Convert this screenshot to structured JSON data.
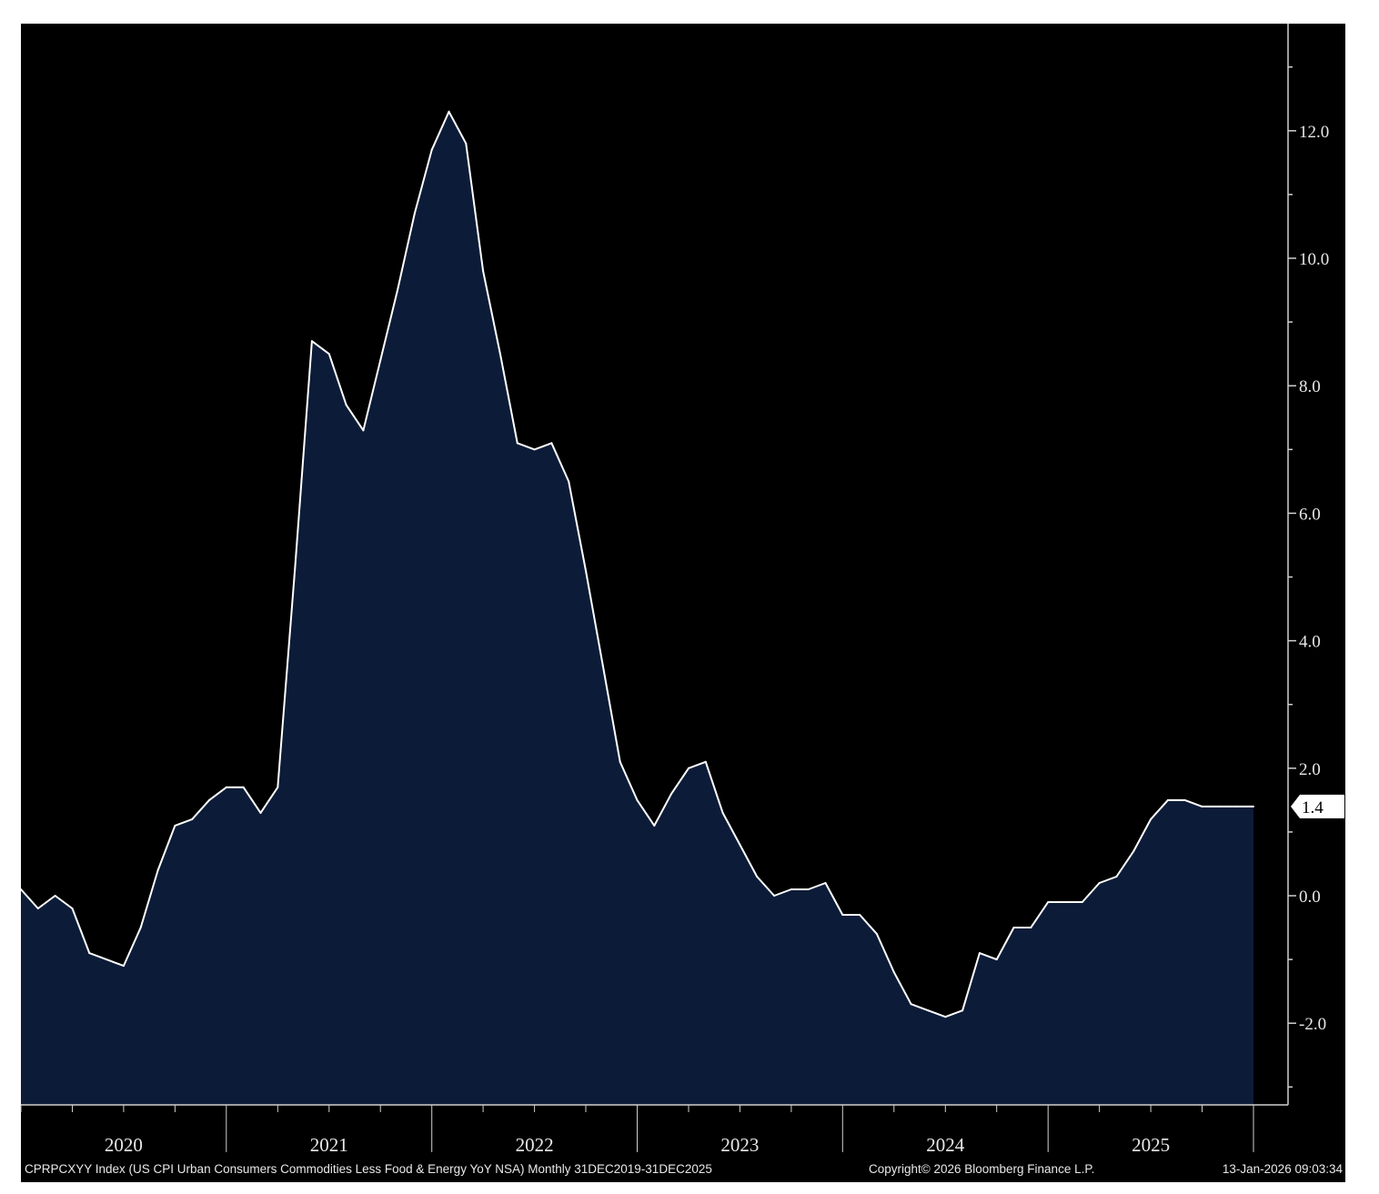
{
  "colors": {
    "background": "#000000",
    "area_fill": "#0c1c38",
    "line": "#ffffff",
    "axis": "#cfcfcf",
    "text": "#e8e8e8"
  },
  "footer": {
    "description": "CPRPCXYY Index (US CPI Urban Consumers Commodities Less Food & Energy YoY NSA) Monthly 31DEC2019-31DEC2025",
    "copyright": "Copyright© 2026 Bloomberg Finance L.P.",
    "timestamp": "13-Jan-2026 09:03:34"
  },
  "last_value_label": "1.4",
  "chart_data": {
    "type": "area",
    "title": "",
    "xlabel": "",
    "ylabel": "",
    "ylim": [
      -3.2,
      13.8
    ],
    "y_ticks": [
      -2,
      0,
      2,
      4,
      6,
      8,
      10,
      12
    ],
    "y_tick_labels": [
      "-2.0",
      "0.0",
      "2.0",
      "4.0",
      "6.0",
      "8.0",
      "10.0",
      "12.0"
    ],
    "x_labels": [
      "2020",
      "2021",
      "2022",
      "2023",
      "2024",
      "2025"
    ],
    "grid": false,
    "legend": "none",
    "series": [
      {
        "x": [
          "2019-12",
          "2020-01",
          "2020-02",
          "2020-03",
          "2020-04",
          "2020-05",
          "2020-06",
          "2020-07",
          "2020-08",
          "2020-09",
          "2020-10",
          "2020-11",
          "2020-12",
          "2021-01",
          "2021-02",
          "2021-03",
          "2021-04",
          "2021-05",
          "2021-06",
          "2021-07",
          "2021-08",
          "2021-09",
          "2021-10",
          "2021-11",
          "2021-12",
          "2022-01",
          "2022-02",
          "2022-03",
          "2022-04",
          "2022-05",
          "2022-06",
          "2022-07",
          "2022-08",
          "2022-09",
          "2022-10",
          "2022-11",
          "2022-12",
          "2023-01",
          "2023-02",
          "2023-03",
          "2023-04",
          "2023-05",
          "2023-06",
          "2023-07",
          "2023-08",
          "2023-09",
          "2023-10",
          "2023-11",
          "2023-12",
          "2024-01",
          "2024-02",
          "2024-03",
          "2024-04",
          "2024-05",
          "2024-06",
          "2024-07",
          "2024-08",
          "2024-09",
          "2024-10",
          "2024-11",
          "2024-12",
          "2025-01",
          "2025-02",
          "2025-03",
          "2025-04",
          "2025-05",
          "2025-06",
          "2025-07",
          "2025-08",
          "2025-09",
          "2025-10",
          "2025-11",
          "2025-12"
        ],
        "values": [
          0.1,
          -0.2,
          0.0,
          -0.2,
          -0.9,
          -1.0,
          -1.1,
          -0.5,
          0.4,
          1.1,
          1.2,
          1.5,
          1.7,
          1.7,
          1.3,
          1.7,
          5.1,
          8.7,
          8.5,
          7.7,
          7.3,
          8.4,
          9.5,
          10.7,
          11.7,
          12.3,
          11.8,
          9.8,
          8.5,
          7.1,
          7.0,
          7.1,
          6.5,
          5.1,
          3.6,
          2.1,
          1.5,
          1.1,
          1.6,
          2.0,
          2.1,
          1.3,
          0.8,
          0.3,
          0.0,
          0.1,
          0.1,
          0.2,
          -0.3,
          -0.3,
          -0.6,
          -1.2,
          -1.7,
          -1.8,
          -1.9,
          -1.8,
          -0.9,
          -1.0,
          -0.5,
          -0.5,
          -0.1,
          -0.1,
          -0.1,
          0.2,
          0.3,
          0.7,
          1.2,
          1.5,
          1.5,
          1.4,
          1.4,
          1.4,
          1.4
        ]
      }
    ]
  }
}
